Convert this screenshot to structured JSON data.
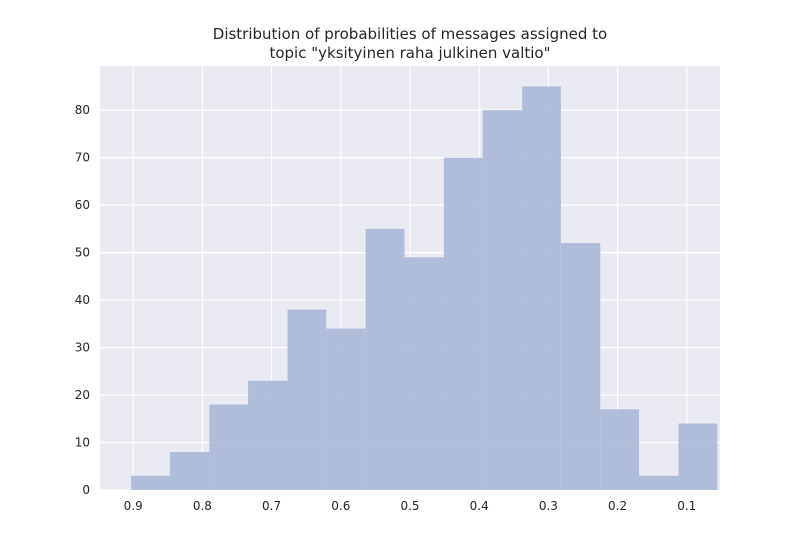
{
  "chart_data": {
    "type": "bar",
    "title_lines": [
      "Distribution of probabilities of messages assigned to",
      "topic \"yksityinen raha julkinen valtio\""
    ],
    "xlabel": "",
    "ylabel": "",
    "x_reversed": true,
    "xlim": [
      0.948,
      0.052
    ],
    "ylim": [
      0,
      89.3
    ],
    "x_ticks": [
      0.9,
      0.8,
      0.7,
      0.6,
      0.5,
      0.4,
      0.3,
      0.2,
      0.1
    ],
    "x_tick_labels": [
      "0.9",
      "0.8",
      "0.7",
      "0.6",
      "0.5",
      "0.4",
      "0.3",
      "0.2",
      "0.1"
    ],
    "y_ticks": [
      0,
      10,
      20,
      30,
      40,
      50,
      60,
      70,
      80
    ],
    "y_tick_labels": [
      "0",
      "10",
      "20",
      "30",
      "40",
      "50",
      "60",
      "70",
      "80"
    ],
    "grid": true,
    "bar_color": "#a8b8d8",
    "background_color": "#eaeaf2",
    "grid_color": "#ffffff",
    "bin_edges": [
      0.903,
      0.847,
      0.79,
      0.734,
      0.677,
      0.621,
      0.564,
      0.508,
      0.451,
      0.395,
      0.338,
      0.282,
      0.225,
      0.169,
      0.112,
      0.056
    ],
    "values": [
      3,
      8,
      18,
      23,
      38,
      34,
      55,
      49,
      70,
      80,
      85,
      52,
      17,
      3,
      14
    ]
  }
}
